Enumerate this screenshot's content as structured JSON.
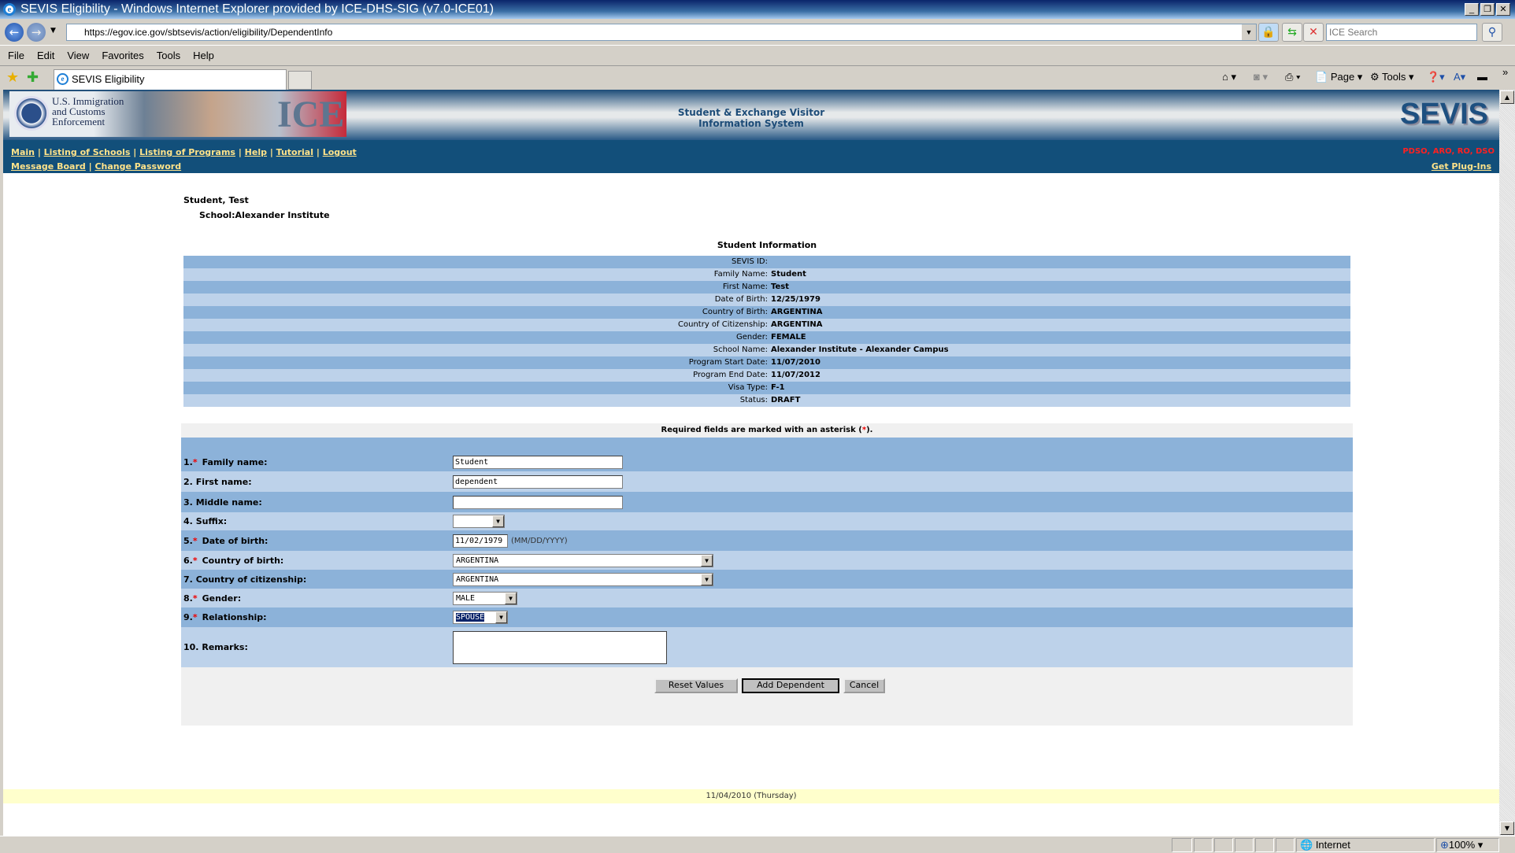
{
  "browser": {
    "title": "SEVIS Eligibility - Windows Internet Explorer provided by ICE-DHS-SIG (v7.0-ICE01)",
    "url": "https://egov.ice.gov/sbtsevis/action/eligibility/DependentInfo",
    "search_placeholder": "ICE Search",
    "menu": [
      "File",
      "Edit",
      "View",
      "Favorites",
      "Tools",
      "Help"
    ],
    "tab": "SEVIS Eligibility",
    "toolbar": {
      "page": "Page",
      "tools": "Tools"
    },
    "status": {
      "zone": "Internet",
      "zoom": "100%"
    }
  },
  "header": {
    "logo_text": "U.S. Immigration and Customs Enforcement",
    "logo_ice": "ICE",
    "center_line1": "Student & Exchange Visitor",
    "center_line2": "Information System",
    "brand": "SEVIS",
    "roles": "PDSO, ARO, RO, DSO",
    "nav1": [
      "Main",
      "Listing of Schools",
      "Listing of Programs",
      "Help",
      "Tutorial",
      "Logout"
    ],
    "nav2": [
      "Message Board",
      "Change Password"
    ],
    "plugins": "Get Plug-Ins"
  },
  "student": {
    "name": "Student, Test",
    "school": "School:Alexander Institute"
  },
  "info": {
    "title": "Student Information",
    "rows": [
      {
        "label": "SEVIS ID:",
        "value": ""
      },
      {
        "label": "Family Name:",
        "value": "Student"
      },
      {
        "label": "First Name:",
        "value": "Test"
      },
      {
        "label": "Date of Birth:",
        "value": "12/25/1979"
      },
      {
        "label": "Country of Birth:",
        "value": "ARGENTINA"
      },
      {
        "label": "Country of Citizenship:",
        "value": "ARGENTINA"
      },
      {
        "label": "Gender:",
        "value": "FEMALE"
      },
      {
        "label": "School Name:",
        "value": "Alexander Institute - Alexander Campus"
      },
      {
        "label": "Program Start Date:",
        "value": "11/07/2010"
      },
      {
        "label": "Program End Date:",
        "value": "11/07/2012"
      },
      {
        "label": "Visa Type:",
        "value": "F-1"
      },
      {
        "label": "Status:",
        "value": "DRAFT"
      }
    ]
  },
  "form": {
    "required_pre": "Required fields are marked with an asterisk (",
    "required_ast": "*",
    "required_post": ").",
    "fields": {
      "family": {
        "num": "1.",
        "label": "Family name:",
        "value": "Student"
      },
      "first": {
        "num": "2.",
        "label": "First name:",
        "value": "dependent"
      },
      "middle": {
        "num": "3.",
        "label": "Middle name:",
        "value": ""
      },
      "suffix": {
        "num": "4.",
        "label": "Suffix:",
        "value": ""
      },
      "dob": {
        "num": "5.",
        "label": "Date of birth:",
        "value": "11/02/1979",
        "hint": "(MM/DD/YYYY)"
      },
      "cob": {
        "num": "6.",
        "label": "Country of birth:",
        "value": "ARGENTINA"
      },
      "coc": {
        "num": "7.",
        "label": "Country of citizenship:",
        "value": "ARGENTINA"
      },
      "gender": {
        "num": "8.",
        "label": "Gender:",
        "value": "MALE"
      },
      "relationship": {
        "num": "9.",
        "label": "Relationship:",
        "value": "SPOUSE"
      },
      "remarks": {
        "num": "10.",
        "label": "Remarks:",
        "value": ""
      }
    },
    "buttons": {
      "reset": "Reset Values",
      "add": "Add Dependent",
      "cancel": "Cancel"
    }
  },
  "footer": {
    "date": "11/04/2010 (Thursday)"
  }
}
